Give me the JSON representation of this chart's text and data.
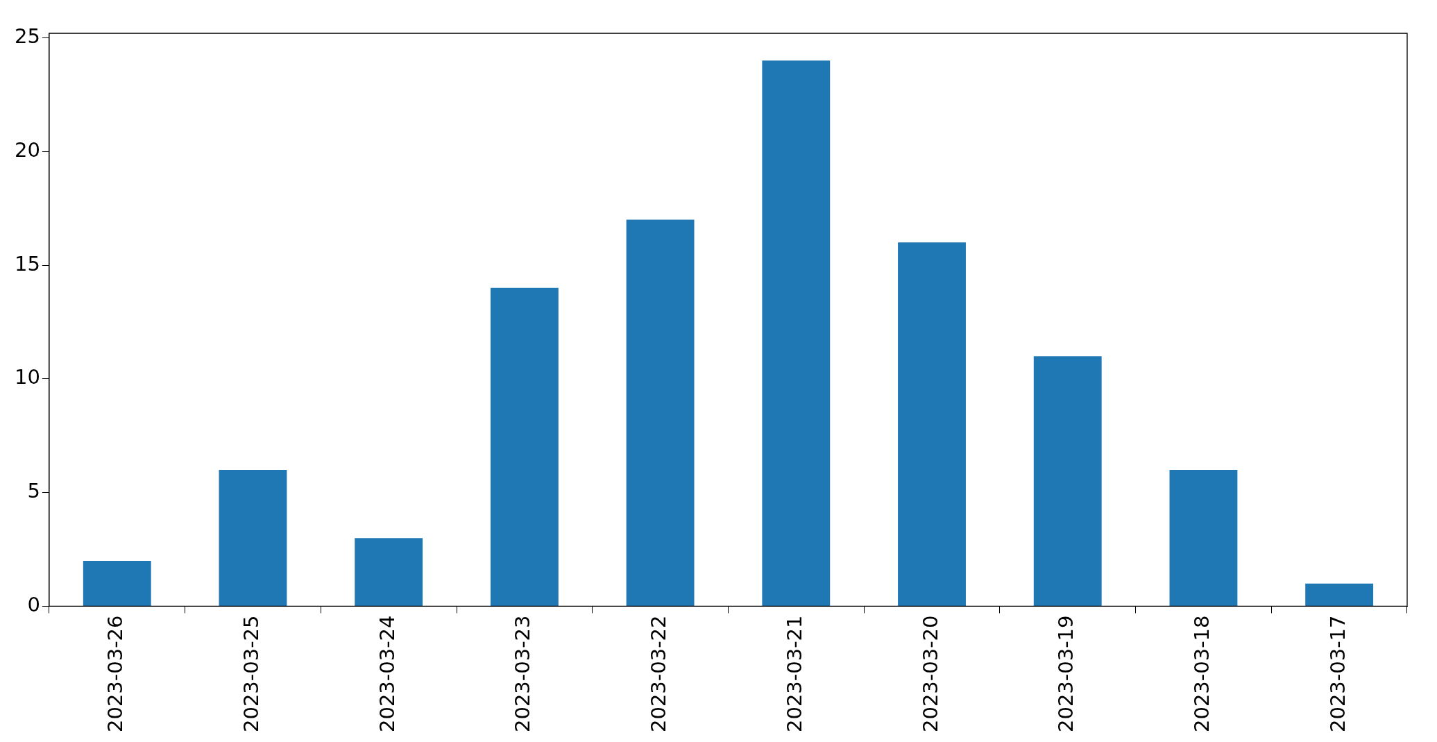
{
  "chart_data": {
    "type": "bar",
    "categories": [
      "2023-03-26",
      "2023-03-25",
      "2023-03-24",
      "2023-03-23",
      "2023-03-22",
      "2023-03-21",
      "2023-03-20",
      "2023-03-19",
      "2023-03-18",
      "2023-03-17"
    ],
    "values": [
      2,
      6,
      3,
      14,
      17,
      24,
      16,
      11,
      6,
      1
    ],
    "color": "#1f77b4",
    "ylim": [
      0,
      25.2
    ],
    "yticks": [
      0,
      5,
      10,
      15,
      20,
      25
    ],
    "grid": false,
    "legend": false
  }
}
